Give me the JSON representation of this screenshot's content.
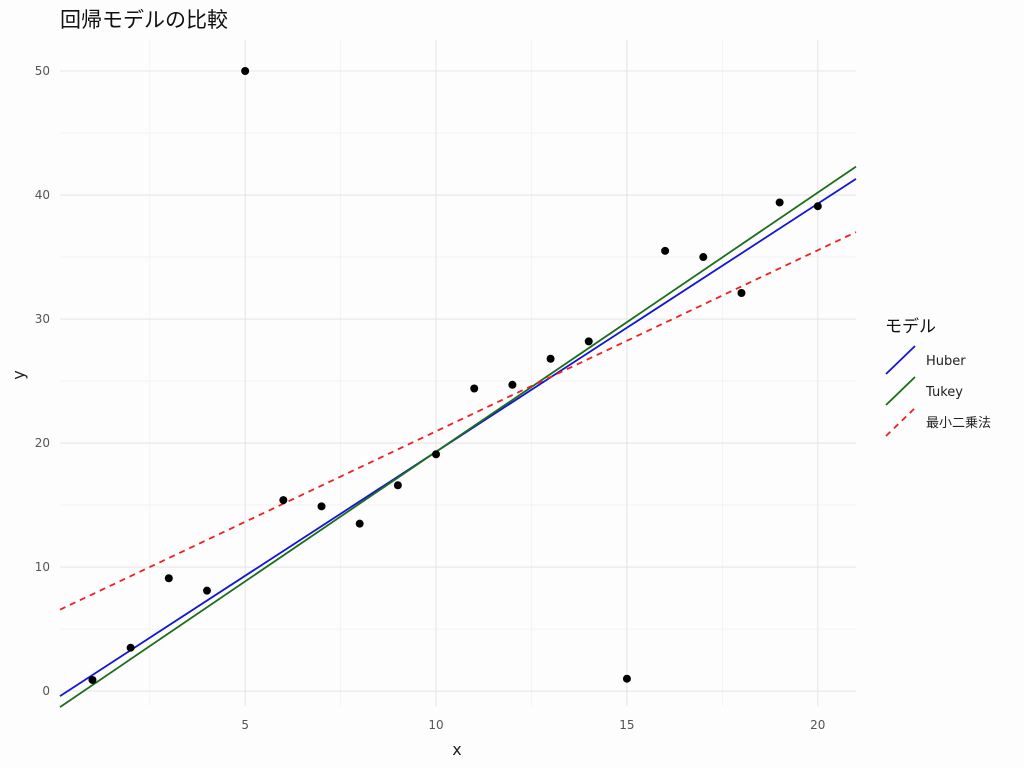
{
  "chart_data": {
    "type": "scatter",
    "title": "回帰モデルの比較",
    "xlabel": "x",
    "ylabel": "y",
    "xlim": [
      0.15,
      21
    ],
    "ylim": [
      -1.2,
      52.5
    ],
    "x_ticks": [
      5,
      10,
      15,
      20
    ],
    "y_ticks": [
      0,
      10,
      20,
      30,
      40,
      50
    ],
    "x_tick_labels": [
      "5",
      "10",
      "15",
      "20"
    ],
    "y_tick_labels": [
      "0",
      "10",
      "20",
      "30",
      "40",
      "50"
    ],
    "grid": true,
    "points": {
      "x": [
        1,
        2,
        3,
        4,
        5,
        6,
        7,
        8,
        9,
        10,
        11,
        12,
        13,
        14,
        15,
        16,
        17,
        18,
        19,
        20
      ],
      "y": [
        0.9,
        3.5,
        9.1,
        8.1,
        50.0,
        15.4,
        14.9,
        13.5,
        16.6,
        19.1,
        24.4,
        24.7,
        26.8,
        28.2,
        1.0,
        35.5,
        35.0,
        32.1,
        39.4,
        39.1
      ],
      "color": "#000000"
    },
    "lines": [
      {
        "name": "Huber",
        "intercept": -0.7,
        "slope": 2.0,
        "color": "#1515d6",
        "dash": "solid"
      },
      {
        "name": "Tukey",
        "intercept": -1.6,
        "slope": 2.09,
        "color": "#1b6e1b",
        "dash": "solid"
      },
      {
        "name": "最小二乗法",
        "intercept": 6.35,
        "slope": 1.46,
        "color": "#ee2020",
        "dash": "dashed"
      }
    ],
    "legend": {
      "title": "モデル",
      "position": "right",
      "entries": [
        "Huber",
        "Tukey",
        "最小二乗法"
      ]
    }
  }
}
